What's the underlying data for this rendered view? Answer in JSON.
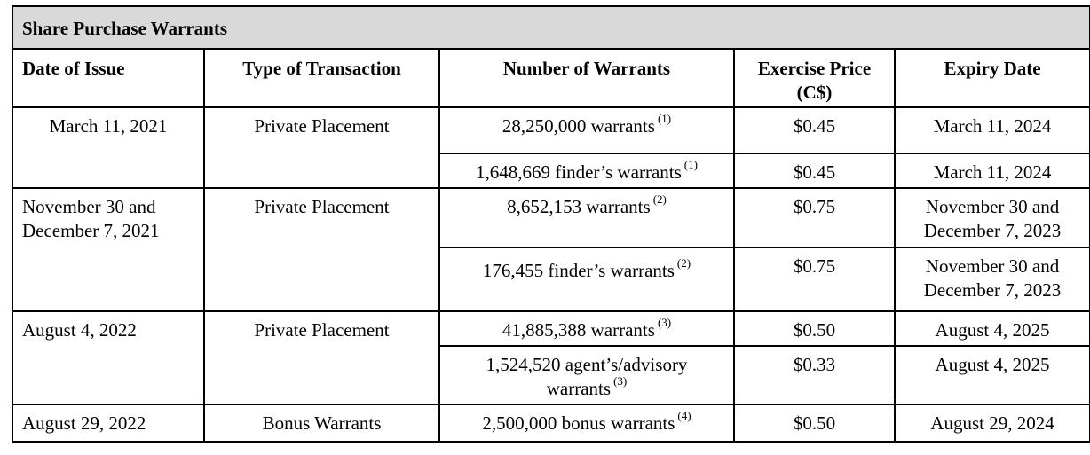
{
  "table": {
    "title": "Share Purchase Warrants",
    "headers": {
      "date_of_issue": "Date of Issue",
      "type_of_transaction": "Type of Transaction",
      "number_of_warrants": "Number of Warrants",
      "exercise_price_line1": "Exercise Price",
      "exercise_price_line2": "(C$)",
      "expiry_date": "Expiry Date"
    },
    "rows": [
      {
        "date_line1": "March 11, 2021",
        "type": "Private Placement",
        "warrants": "28,250,000 warrants",
        "note": "(1)",
        "price": "$0.45",
        "expiry_line1": "March 11, 2024"
      },
      {
        "warrants": "1,648,669 finder’s warrants",
        "note": "(1)",
        "price": "$0.45",
        "expiry_line1": "March 11, 2024"
      },
      {
        "date_line1": "November 30 and",
        "date_line2": "December 7, 2021",
        "type": "Private Placement",
        "warrants": "8,652,153 warrants",
        "note": "(2)",
        "price": "$0.75",
        "expiry_line1": "November 30 and",
        "expiry_line2": "December 7, 2023"
      },
      {
        "warrants": "176,455 finder’s warrants",
        "note": "(2)",
        "price": "$0.75",
        "expiry_line1": "November 30 and",
        "expiry_line2": "December 7, 2023"
      },
      {
        "date_line1": "August 4, 2022",
        "type": "Private Placement",
        "warrants": "41,885,388 warrants",
        "note": "(3)",
        "price": "$0.50",
        "expiry_line1": "August 4, 2025"
      },
      {
        "warrants_line1": "1,524,520 agent’s/advisory",
        "warrants_line2": "warrants",
        "note": "(3)",
        "price": "$0.33",
        "expiry_line1": "August 4, 2025"
      },
      {
        "date_line1": "August 29, 2022",
        "type": "Bonus Warrants",
        "warrants": "2,500,000 bonus warrants",
        "note": "(4)",
        "price": "$0.50",
        "expiry_line1": "August 29, 2024"
      }
    ]
  }
}
